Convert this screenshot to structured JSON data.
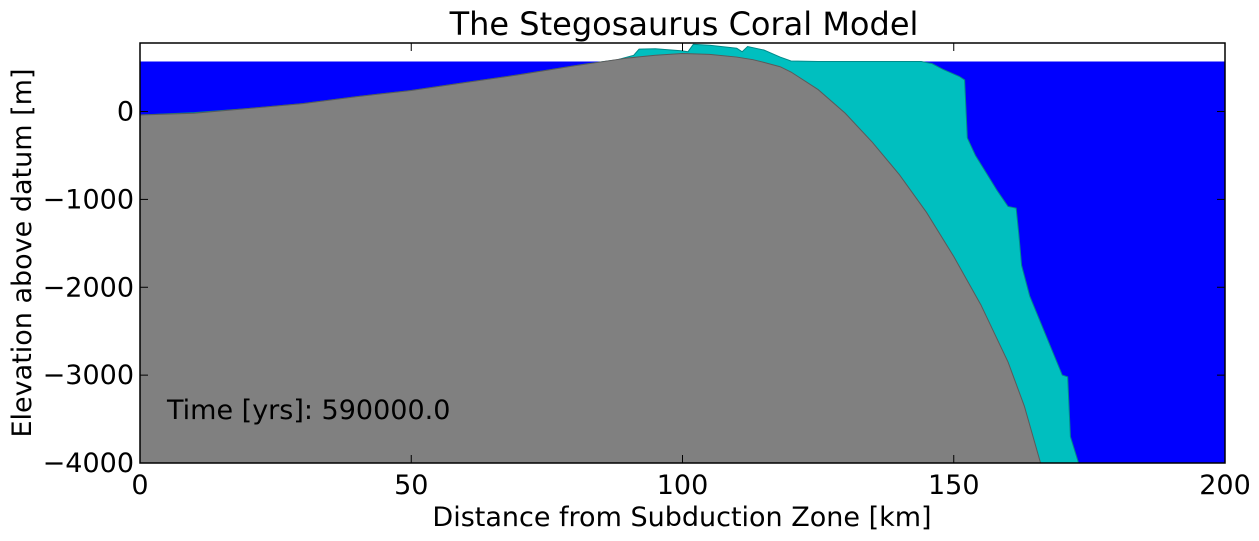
{
  "chart_data": {
    "type": "area",
    "title": "The Stegosaurus Coral Model",
    "xlabel": "Distance from Subduction Zone [km]",
    "ylabel": "Elevation above datum [m]",
    "xlim": [
      0,
      200
    ],
    "ylim": [
      -4000,
      780
    ],
    "xticks": [
      0,
      50,
      100,
      150,
      200
    ],
    "yticks": [
      -4000,
      -3000,
      -2000,
      -1000,
      0
    ],
    "xtick_labels": [
      "0",
      "50",
      "100",
      "150",
      "200"
    ],
    "ytick_labels": [
      "−4000",
      "−3000",
      "−2000",
      "−1000",
      "0"
    ],
    "grid": false,
    "annotation": "Time [yrs]: 590000.0",
    "colors": {
      "water": "#0000ff",
      "coral": "#00bfbf",
      "bedrock": "#808080",
      "bedrock_edge": "#5a5a5a",
      "coral_edge": "#008b8b"
    },
    "sea_level": 570,
    "series": [
      {
        "fill_color": "#0000ff",
        "x": [
          0,
          200
        ],
        "y": [
          570,
          570
        ]
      },
      {
        "fill_color": "#00bfbf",
        "x": [
          0,
          10,
          20,
          30,
          40,
          50,
          60,
          70,
          80,
          82,
          88,
          91,
          92,
          95,
          100,
          101,
          102,
          105,
          110,
          111,
          112,
          115,
          118,
          120,
          125,
          130,
          135,
          140,
          144,
          146,
          148,
          151,
          152,
          152.5,
          154,
          156,
          158,
          160,
          161.5,
          162,
          162.5,
          164,
          166,
          168,
          170,
          171,
          171.5,
          173
        ],
        "y": [
          -40,
          -12,
          35,
          90,
          170,
          240,
          330,
          420,
          520,
          540,
          590,
          640,
          710,
          715,
          690,
          680,
          765,
          755,
          720,
          680,
          740,
          700,
          620,
          575,
          570,
          570,
          570,
          570,
          570,
          545,
          480,
          400,
          360,
          -300,
          -500,
          -700,
          -900,
          -1080,
          -1100,
          -1400,
          -1750,
          -2100,
          -2400,
          -2700,
          -3000,
          -3020,
          -3700,
          -4000
        ]
      },
      {
        "fill_color": "#808080",
        "x": [
          0,
          10,
          20,
          30,
          40,
          50,
          60,
          70,
          80,
          90,
          95,
          100,
          105,
          110,
          113,
          115,
          118,
          120,
          125,
          130,
          135,
          140,
          145,
          150,
          155,
          160,
          163,
          166
        ],
        "y": [
          -40,
          -20,
          35,
          90,
          170,
          240,
          330,
          420,
          520,
          610,
          640,
          660,
          650,
          620,
          590,
          560,
          510,
          450,
          250,
          -20,
          -350,
          -720,
          -1150,
          -1650,
          -2200,
          -2850,
          -3350,
          -4000
        ]
      }
    ]
  }
}
